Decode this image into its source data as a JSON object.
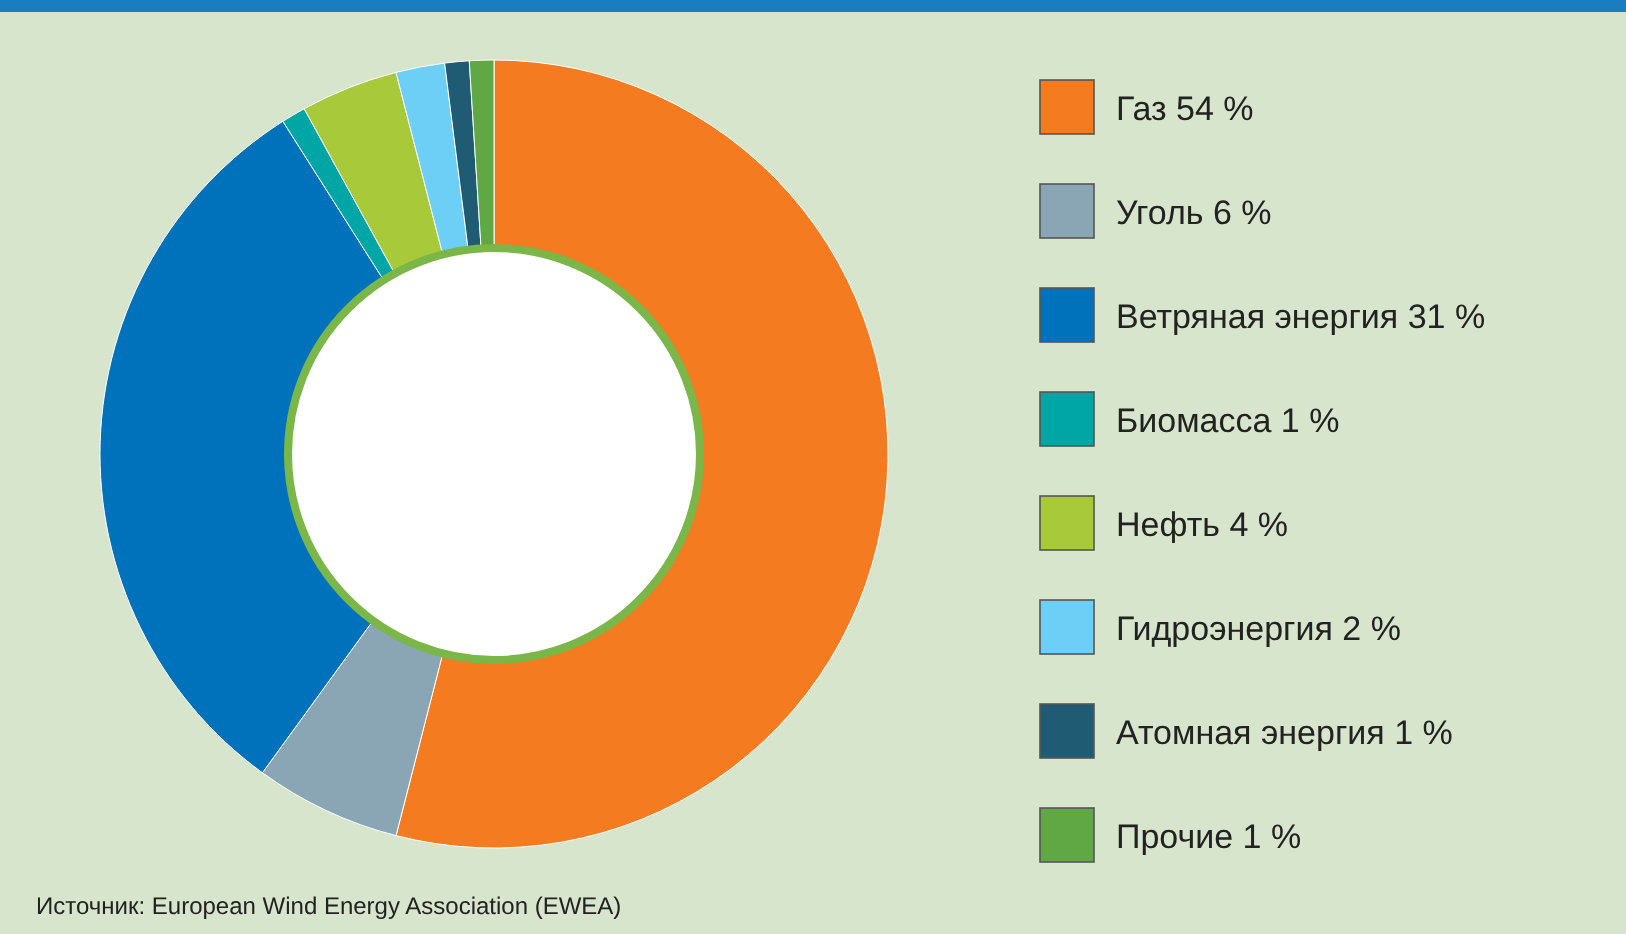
{
  "chart_data": {
    "type": "donut",
    "categories": [
      "Газ 54 %",
      "Уголь 6 %",
      "Ветряная энергия 31 %",
      "Биомасса 1 %",
      "Нефть 4 %",
      "Гидроэнергия 2 %",
      "Атомная энергия 1 %",
      "Прочие 1 %"
    ],
    "values": [
      54,
      6,
      31,
      1,
      4,
      2,
      1,
      1
    ],
    "colors": [
      "#f47b20",
      "#8aa6b5",
      "#0072bc",
      "#00a6a6",
      "#a8c93a",
      "#6dcff6",
      "#1f5c74",
      "#5fa843"
    ],
    "legend": "right",
    "annotations": [
      "Источник: European Wind Energy Association (EWEA)"
    ]
  }
}
